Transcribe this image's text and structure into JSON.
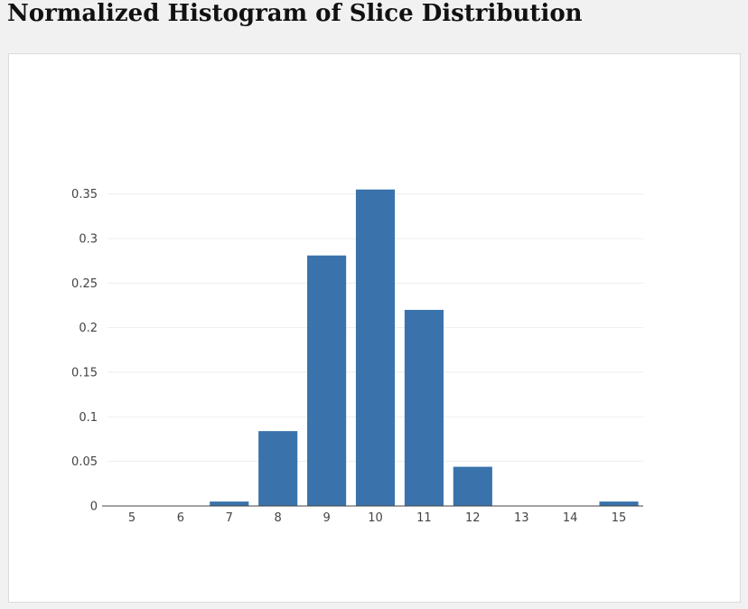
{
  "page": {
    "title": "Normalized Histogram of Slice Distribution"
  },
  "chart_data": {
    "type": "bar",
    "title": "",
    "xlabel": "",
    "ylabel": "",
    "categories": [
      "5",
      "6",
      "7",
      "8",
      "9",
      "10",
      "11",
      "12",
      "13",
      "14",
      "15"
    ],
    "values": [
      0,
      0,
      0.005,
      0.084,
      0.281,
      0.355,
      0.22,
      0.044,
      0,
      0,
      0.005
    ],
    "ylim": [
      0,
      0.375
    ],
    "yticks": [
      0,
      0.05,
      0.1,
      0.15,
      0.2,
      0.25,
      0.3,
      0.35
    ],
    "ytick_labels": [
      "0",
      "0.05",
      "0.1",
      "0.15",
      "0.2",
      "0.25",
      "0.3",
      "0.35"
    ],
    "grid": true,
    "legend": "none",
    "colors": {
      "bar": "#3a73ab",
      "grid": "#eeeeee",
      "axis": "#444444",
      "tick_text": "#444444"
    }
  }
}
